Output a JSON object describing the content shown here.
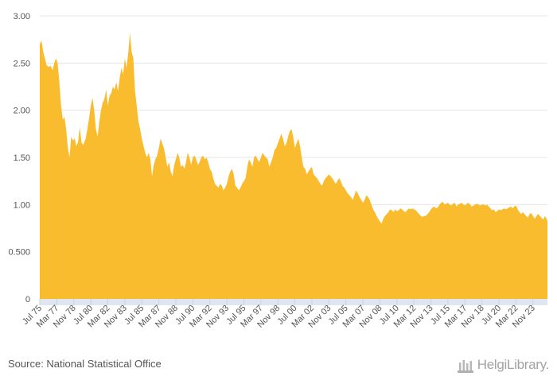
{
  "chart_data": {
    "type": "area",
    "color": "#F9BC2F",
    "y_ticks": [
      "0",
      "0.500",
      "1.00",
      "1.50",
      "2.00",
      "2.50",
      "3.00"
    ],
    "ylim": [
      0,
      3.0
    ],
    "grid": true,
    "x_ticks": [
      "Jul 75",
      "Mar 77",
      "Nov 78",
      "Jul 80",
      "Mar 82",
      "Nov 83",
      "Jul 85",
      "Mar 87",
      "Nov 88",
      "Jul 90",
      "Mar 92",
      "Nov 93",
      "Jul 95",
      "Mar 97",
      "Nov 98",
      "Jul 00",
      "Mar 02",
      "Nov 03",
      "Jul 05",
      "Mar 07",
      "Nov 08",
      "Jul 10",
      "Mar 12",
      "Nov 13",
      "Jul 15",
      "Mar 17",
      "Nov 18",
      "Jul 20",
      "Mar 22",
      "Nov 23"
    ],
    "x_start": "Jul 75",
    "x_end": "Apr 25",
    "points": [
      [
        "Jul 75",
        2.7
      ],
      [
        "Sep 75",
        2.74
      ],
      [
        "Nov 75",
        2.62
      ],
      [
        "Jan 76",
        2.55
      ],
      [
        "Mar 76",
        2.48
      ],
      [
        "May 76",
        2.46
      ],
      [
        "Aug 76",
        2.47
      ],
      [
        "Oct 76",
        2.42
      ],
      [
        "Dec 76",
        2.5
      ],
      [
        "Feb 77",
        2.55
      ],
      [
        "Apr 77",
        2.5
      ],
      [
        "Jun 77",
        2.3
      ],
      [
        "Aug 77",
        2.05
      ],
      [
        "Oct 77",
        1.9
      ],
      [
        "Dec 77",
        1.93
      ],
      [
        "Feb 78",
        1.8
      ],
      [
        "Apr 78",
        1.6
      ],
      [
        "Jun 78",
        1.5
      ],
      [
        "Aug 78",
        1.72
      ],
      [
        "Oct 78",
        1.68
      ],
      [
        "Dec 78",
        1.7
      ],
      [
        "Feb 79",
        1.62
      ],
      [
        "Apr 79",
        1.66
      ],
      [
        "Jun 79",
        1.82
      ],
      [
        "Aug 79",
        1.66
      ],
      [
        "Oct 79",
        1.63
      ],
      [
        "Jan 80",
        1.7
      ],
      [
        "Mar 80",
        1.8
      ],
      [
        "May 80",
        1.92
      ],
      [
        "Jul 80",
        2.05
      ],
      [
        "Sep 80",
        2.13
      ],
      [
        "Nov 80",
        2.0
      ],
      [
        "Jan 81",
        1.8
      ],
      [
        "Mar 81",
        1.72
      ],
      [
        "May 81",
        1.88
      ],
      [
        "Jul 81",
        2.0
      ],
      [
        "Sep 81",
        2.08
      ],
      [
        "Nov 81",
        2.12
      ],
      [
        "Jan 82",
        2.22
      ],
      [
        "Mar 82",
        2.05
      ],
      [
        "May 82",
        2.15
      ],
      [
        "Jul 82",
        2.18
      ],
      [
        "Sep 82",
        2.25
      ],
      [
        "Nov 82",
        2.22
      ],
      [
        "Jan 83",
        2.3
      ],
      [
        "Mar 83",
        2.2
      ],
      [
        "May 83",
        2.35
      ],
      [
        "Jul 83",
        2.45
      ],
      [
        "Sep 83",
        2.38
      ],
      [
        "Nov 83",
        2.55
      ],
      [
        "Jan 84",
        2.45
      ],
      [
        "Mar 84",
        2.6
      ],
      [
        "May 84",
        2.82
      ],
      [
        "Jul 84",
        2.62
      ],
      [
        "Sep 84",
        2.55
      ],
      [
        "Nov 84",
        2.2
      ],
      [
        "Jan 85",
        2.05
      ],
      [
        "Mar 85",
        1.88
      ],
      [
        "May 85",
        1.8
      ],
      [
        "Jul 85",
        1.7
      ],
      [
        "Sep 85",
        1.62
      ],
      [
        "Nov 85",
        1.55
      ],
      [
        "Jan 86",
        1.5
      ],
      [
        "Mar 86",
        1.55
      ],
      [
        "May 86",
        1.48
      ],
      [
        "Jul 86",
        1.3
      ],
      [
        "Sep 86",
        1.42
      ],
      [
        "Nov 86",
        1.48
      ],
      [
        "Jan 87",
        1.52
      ],
      [
        "Mar 87",
        1.6
      ],
      [
        "May 87",
        1.7
      ],
      [
        "Jul 87",
        1.65
      ],
      [
        "Sep 87",
        1.6
      ],
      [
        "Nov 87",
        1.5
      ],
      [
        "Jan 88",
        1.4
      ],
      [
        "Mar 88",
        1.45
      ],
      [
        "May 88",
        1.35
      ],
      [
        "Jul 88",
        1.3
      ],
      [
        "Sep 88",
        1.42
      ],
      [
        "Nov 88",
        1.48
      ],
      [
        "Jan 89",
        1.55
      ],
      [
        "Mar 89",
        1.5
      ],
      [
        "May 89",
        1.4
      ],
      [
        "Jul 89",
        1.42
      ],
      [
        "Sep 89",
        1.38
      ],
      [
        "Nov 89",
        1.45
      ],
      [
        "Jan 90",
        1.55
      ],
      [
        "Mar 90",
        1.5
      ],
      [
        "May 90",
        1.42
      ],
      [
        "Jul 90",
        1.5
      ],
      [
        "Sep 90",
        1.52
      ],
      [
        "Nov 90",
        1.48
      ],
      [
        "Jan 91",
        1.42
      ],
      [
        "Mar 91",
        1.45
      ],
      [
        "May 91",
        1.5
      ],
      [
        "Jul 91",
        1.52
      ],
      [
        "Sep 91",
        1.48
      ],
      [
        "Nov 91",
        1.5
      ],
      [
        "Jan 92",
        1.45
      ],
      [
        "Mar 92",
        1.38
      ],
      [
        "May 92",
        1.35
      ],
      [
        "Jul 92",
        1.28
      ],
      [
        "Sep 92",
        1.22
      ],
      [
        "Nov 92",
        1.2
      ],
      [
        "Jan 93",
        1.18
      ],
      [
        "Mar 93",
        1.22
      ],
      [
        "May 93",
        1.2
      ],
      [
        "Jul 93",
        1.15
      ],
      [
        "Sep 93",
        1.18
      ],
      [
        "Nov 93",
        1.22
      ],
      [
        "Jan 94",
        1.3
      ],
      [
        "Mar 94",
        1.35
      ],
      [
        "May 94",
        1.38
      ],
      [
        "Jul 94",
        1.32
      ],
      [
        "Sep 94",
        1.2
      ],
      [
        "Nov 94",
        1.18
      ],
      [
        "Jan 95",
        1.15
      ],
      [
        "Mar 95",
        1.18
      ],
      [
        "May 95",
        1.22
      ],
      [
        "Jul 95",
        1.25
      ],
      [
        "Sep 95",
        1.28
      ],
      [
        "Nov 95",
        1.4
      ],
      [
        "Jan 96",
        1.48
      ],
      [
        "Mar 96",
        1.45
      ],
      [
        "May 96",
        1.4
      ],
      [
        "Jul 96",
        1.5
      ],
      [
        "Sep 96",
        1.52
      ],
      [
        "Nov 96",
        1.48
      ],
      [
        "Jan 97",
        1.45
      ],
      [
        "Mar 97",
        1.5
      ],
      [
        "May 97",
        1.55
      ],
      [
        "Jul 97",
        1.52
      ],
      [
        "Sep 97",
        1.5
      ],
      [
        "Nov 97",
        1.48
      ],
      [
        "Jan 98",
        1.4
      ],
      [
        "Mar 98",
        1.45
      ],
      [
        "May 98",
        1.5
      ],
      [
        "Jul 98",
        1.58
      ],
      [
        "Sep 98",
        1.6
      ],
      [
        "Nov 98",
        1.65
      ],
      [
        "Jan 99",
        1.7
      ],
      [
        "Mar 99",
        1.75
      ],
      [
        "May 99",
        1.7
      ],
      [
        "Jul 99",
        1.62
      ],
      [
        "Sep 99",
        1.65
      ],
      [
        "Nov 99",
        1.72
      ],
      [
        "Jan 00",
        1.78
      ],
      [
        "Mar 00",
        1.8
      ],
      [
        "May 00",
        1.72
      ],
      [
        "Jul 00",
        1.6
      ],
      [
        "Sep 00",
        1.65
      ],
      [
        "Nov 00",
        1.7
      ],
      [
        "Jan 01",
        1.62
      ],
      [
        "Mar 01",
        1.5
      ],
      [
        "May 01",
        1.4
      ],
      [
        "Jul 01",
        1.38
      ],
      [
        "Sep 01",
        1.32
      ],
      [
        "Nov 01",
        1.35
      ],
      [
        "Jan 02",
        1.38
      ],
      [
        "Mar 02",
        1.4
      ],
      [
        "May 02",
        1.32
      ],
      [
        "Jul 02",
        1.3
      ],
      [
        "Sep 02",
        1.28
      ],
      [
        "Nov 02",
        1.25
      ],
      [
        "Jan 03",
        1.22
      ],
      [
        "Mar 03",
        1.2
      ],
      [
        "May 03",
        1.25
      ],
      [
        "Jul 03",
        1.28
      ],
      [
        "Sep 03",
        1.3
      ],
      [
        "Nov 03",
        1.32
      ],
      [
        "Jan 04",
        1.3
      ],
      [
        "Mar 04",
        1.28
      ],
      [
        "May 04",
        1.25
      ],
      [
        "Jul 04",
        1.22
      ],
      [
        "Sep 04",
        1.25
      ],
      [
        "Nov 04",
        1.28
      ],
      [
        "Jan 05",
        1.25
      ],
      [
        "Mar 05",
        1.2
      ],
      [
        "May 05",
        1.18
      ],
      [
        "Jul 05",
        1.15
      ],
      [
        "Sep 05",
        1.12
      ],
      [
        "Nov 05",
        1.1
      ],
      [
        "Jan 06",
        1.08
      ],
      [
        "Mar 06",
        1.05
      ],
      [
        "May 06",
        1.1
      ],
      [
        "Jul 06",
        1.15
      ],
      [
        "Sep 06",
        1.12
      ],
      [
        "Nov 06",
        1.08
      ],
      [
        "Jan 07",
        1.05
      ],
      [
        "Mar 07",
        1.02
      ],
      [
        "May 07",
        1.05
      ],
      [
        "Jul 07",
        1.1
      ],
      [
        "Sep 07",
        1.08
      ],
      [
        "Nov 07",
        1.05
      ],
      [
        "Jan 08",
        1.0
      ],
      [
        "Mar 08",
        0.95
      ],
      [
        "May 08",
        0.92
      ],
      [
        "Jul 08",
        0.88
      ],
      [
        "Sep 08",
        0.85
      ],
      [
        "Nov 08",
        0.82
      ],
      [
        "Jan 09",
        0.8
      ],
      [
        "Mar 09",
        0.85
      ],
      [
        "May 09",
        0.88
      ],
      [
        "Jul 09",
        0.9
      ],
      [
        "Sep 09",
        0.92
      ],
      [
        "Nov 09",
        0.95
      ],
      [
        "Jan 10",
        0.94
      ],
      [
        "Mar 10",
        0.92
      ],
      [
        "May 10",
        0.95
      ],
      [
        "Jul 10",
        0.93
      ],
      [
        "Sep 10",
        0.94
      ],
      [
        "Nov 10",
        0.96
      ],
      [
        "Jan 11",
        0.95
      ],
      [
        "Mar 11",
        0.93
      ],
      [
        "May 11",
        0.92
      ],
      [
        "Jul 11",
        0.94
      ],
      [
        "Sep 11",
        0.96
      ],
      [
        "Nov 11",
        0.95
      ],
      [
        "Jan 12",
        0.96
      ],
      [
        "Mar 12",
        0.95
      ],
      [
        "May 12",
        0.94
      ],
      [
        "Jul 12",
        0.92
      ],
      [
        "Sep 12",
        0.9
      ],
      [
        "Nov 12",
        0.88
      ],
      [
        "Jan 13",
        0.87
      ],
      [
        "Mar 13",
        0.88
      ],
      [
        "May 13",
        0.88
      ],
      [
        "Jul 13",
        0.9
      ],
      [
        "Sep 13",
        0.92
      ],
      [
        "Nov 13",
        0.95
      ],
      [
        "Jan 14",
        0.97
      ],
      [
        "Mar 14",
        0.98
      ],
      [
        "May 14",
        0.96
      ],
      [
        "Jul 14",
        0.97
      ],
      [
        "Sep 14",
        1.0
      ],
      [
        "Nov 14",
        1.02
      ],
      [
        "Jan 15",
        1.03
      ],
      [
        "Mar 15",
        1.0
      ],
      [
        "May 15",
        1.01
      ],
      [
        "Jul 15",
        1.02
      ],
      [
        "Sep 15",
        1.0
      ],
      [
        "Nov 15",
        0.99
      ],
      [
        "Jan 16",
        1.01
      ],
      [
        "Mar 16",
        1.02
      ],
      [
        "May 16",
        0.98
      ],
      [
        "Jul 16",
        1.0
      ],
      [
        "Sep 16",
        1.01
      ],
      [
        "Nov 16",
        1.02
      ],
      [
        "Jan 17",
        1.0
      ],
      [
        "Mar 17",
        0.99
      ],
      [
        "May 17",
        1.01
      ],
      [
        "Jul 17",
        1.02
      ],
      [
        "Sep 17",
        1.0
      ],
      [
        "Nov 17",
        0.98
      ],
      [
        "Jan 18",
        0.99
      ],
      [
        "Mar 18",
        1.0
      ],
      [
        "May 18",
        1.01
      ],
      [
        "Jul 18",
        1.0
      ],
      [
        "Sep 18",
        0.99
      ],
      [
        "Nov 18",
        1.0
      ],
      [
        "Jan 19",
        1.0
      ],
      [
        "Mar 19",
        0.99
      ],
      [
        "May 19",
        1.0
      ],
      [
        "Jul 19",
        0.98
      ],
      [
        "Sep 19",
        0.96
      ],
      [
        "Nov 19",
        0.94
      ],
      [
        "Jan 20",
        0.95
      ],
      [
        "Mar 20",
        0.92
      ],
      [
        "May 20",
        0.93
      ],
      [
        "Jul 20",
        0.95
      ],
      [
        "Sep 20",
        0.94
      ],
      [
        "Nov 20",
        0.95
      ],
      [
        "Jan 21",
        0.96
      ],
      [
        "Mar 21",
        0.95
      ],
      [
        "May 21",
        0.96
      ],
      [
        "Jul 21",
        0.97
      ],
      [
        "Sep 21",
        0.98
      ],
      [
        "Nov 21",
        0.96
      ],
      [
        "Jan 22",
        0.98
      ],
      [
        "Mar 22",
        0.99
      ],
      [
        "May 22",
        0.95
      ],
      [
        "Jul 22",
        0.92
      ],
      [
        "Sep 22",
        0.9
      ],
      [
        "Nov 22",
        0.92
      ],
      [
        "Jan 23",
        0.9
      ],
      [
        "Mar 23",
        0.88
      ],
      [
        "May 23",
        0.86
      ],
      [
        "Jul 23",
        0.9
      ],
      [
        "Sep 23",
        0.91
      ],
      [
        "Nov 23",
        0.88
      ],
      [
        "Jan 24",
        0.85
      ],
      [
        "Mar 24",
        0.88
      ],
      [
        "May 24",
        0.9
      ],
      [
        "Jul 24",
        0.88
      ],
      [
        "Sep 24",
        0.86
      ],
      [
        "Nov 24",
        0.84
      ],
      [
        "Jan 25",
        0.88
      ],
      [
        "Mar 25",
        0.85
      ],
      [
        "Apr 25",
        0.82
      ]
    ]
  },
  "footer": {
    "source": "Source: National Statistical Office",
    "logo_text": "HelgiLibrary."
  }
}
